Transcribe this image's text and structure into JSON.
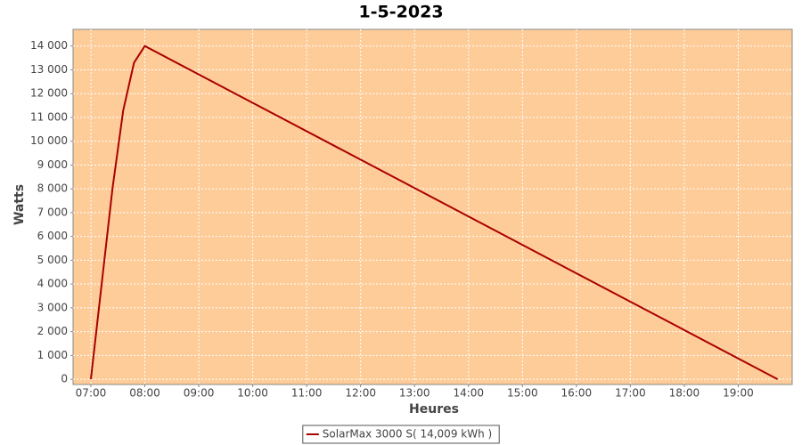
{
  "chart_data": {
    "type": "line",
    "title": "1-5-2023",
    "x_label": "Heures",
    "y_label": "Watts",
    "series": [
      {
        "name": "SolarMax 3000 S( 14,009 kWh )",
        "color": "#aa0000",
        "x": [
          7.0,
          7.4,
          7.6,
          7.8,
          8.0,
          19.73
        ],
        "values": [
          0,
          8000,
          11300,
          13300,
          14000,
          0
        ]
      }
    ],
    "xlim": [
      6.67,
      20.0
    ],
    "xticks": [
      {
        "value": 7,
        "label": "07:00"
      },
      {
        "value": 8,
        "label": "08:00"
      },
      {
        "value": 9,
        "label": "09:00"
      },
      {
        "value": 10,
        "label": "10:00"
      },
      {
        "value": 11,
        "label": "11:00"
      },
      {
        "value": 12,
        "label": "12:00"
      },
      {
        "value": 13,
        "label": "13:00"
      },
      {
        "value": 14,
        "label": "14:00"
      },
      {
        "value": 15,
        "label": "15:00"
      },
      {
        "value": 16,
        "label": "16:00"
      },
      {
        "value": 17,
        "label": "17:00"
      },
      {
        "value": 18,
        "label": "18:00"
      },
      {
        "value": 19,
        "label": "19:00"
      }
    ],
    "ylim": [
      -220,
      14700
    ],
    "yticks": [
      0,
      {
        "value": 1000,
        "label": "1 000"
      },
      {
        "value": 2000,
        "label": "2 000"
      },
      {
        "value": 3000,
        "label": "3 000"
      },
      {
        "value": 4000,
        "label": "4 000"
      },
      {
        "value": 5000,
        "label": "5 000"
      },
      {
        "value": 6000,
        "label": "6 000"
      },
      {
        "value": 7000,
        "label": "7 000"
      },
      {
        "value": 8000,
        "label": "8 000"
      },
      {
        "value": 9000,
        "label": "9 000"
      },
      {
        "value": 10000,
        "label": "10 000"
      },
      {
        "value": 11000,
        "label": "11 000"
      },
      {
        "value": 12000,
        "label": "12 000"
      },
      {
        "value": 13000,
        "label": "13 000"
      },
      {
        "value": 14000,
        "label": "14 000"
      }
    ],
    "grid": true,
    "plot_background": "#fecc99",
    "legend": "bottom"
  }
}
